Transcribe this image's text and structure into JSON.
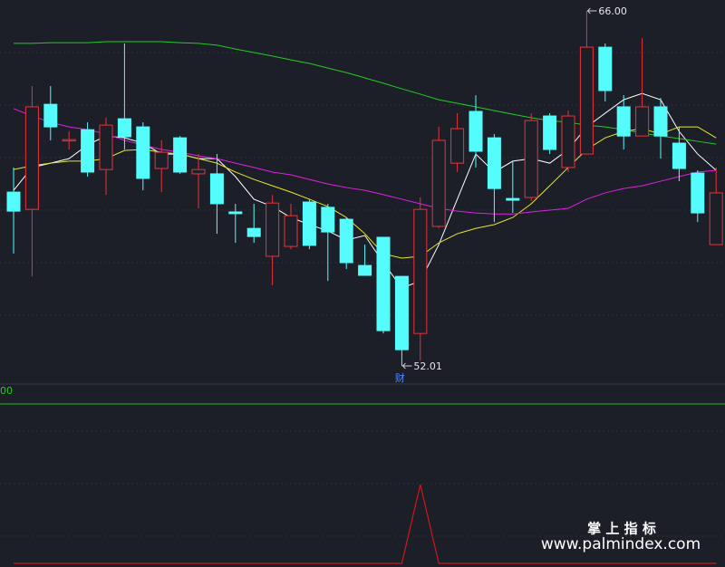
{
  "chart_data": [
    {
      "type": "candlestick",
      "ylim": [
        51.44,
        66.43
      ],
      "up_color": "#e8333a",
      "down_color": "#54fcfc",
      "open": [
        58.86,
        58.18,
        62.32,
        60.9,
        61.32,
        59.75,
        61.75,
        61.43,
        59.79,
        61.0,
        59.58,
        59.58,
        58.08,
        57.43,
        56.33,
        56.72,
        58.47,
        58.26,
        57.79,
        55.97,
        57.08,
        55.54,
        53.29,
        57.51,
        60.0,
        62.04,
        61.0,
        58.61,
        58.65,
        61.86,
        59.83,
        60.36,
        64.57,
        62.22,
        61.07,
        62.22,
        60.79,
        59.61,
        56.79
      ],
      "high": [
        59.83,
        63.04,
        63.04,
        61.25,
        61.61,
        61.79,
        64.72,
        61.61,
        60.9,
        61.07,
        60.36,
        60.36,
        58.4,
        58.4,
        58.75,
        58.4,
        58.58,
        58.4,
        57.86,
        56.79,
        57.08,
        55.54,
        58.65,
        61.43,
        61.97,
        62.68,
        61.15,
        60.08,
        61.97,
        61.97,
        62.07,
        66.0,
        64.72,
        62.68,
        64.93,
        62.57,
        61.43,
        59.72,
        59.83
      ],
      "low": [
        56.44,
        55.54,
        60.9,
        60.54,
        59.47,
        58.75,
        60.54,
        58.93,
        58.86,
        59.58,
        58.22,
        57.22,
        56.86,
        56.86,
        55.19,
        56.61,
        56.61,
        55.36,
        55.83,
        55.58,
        53.29,
        52.01,
        52.22,
        57.43,
        59.65,
        59.83,
        57.68,
        58.04,
        58.51,
        60.36,
        59.65,
        60.36,
        62.43,
        60.54,
        61.07,
        60.18,
        59.29,
        57.68,
        56.79
      ],
      "close": [
        58.11,
        62.22,
        61.43,
        60.93,
        59.65,
        61.5,
        61.04,
        59.4,
        60.43,
        59.65,
        59.75,
        58.4,
        58.01,
        57.11,
        58.43,
        57.93,
        56.76,
        57.29,
        56.08,
        55.58,
        53.4,
        52.65,
        58.18,
        60.9,
        61.36,
        60.47,
        59.0,
        58.54,
        61.68,
        60.54,
        61.86,
        64.57,
        62.86,
        61.07,
        62.22,
        61.07,
        59.79,
        58.04,
        58.83
      ],
      "series": [
        {
          "color": "#ffffff",
          "values": [
            58.93,
            59.83,
            60.0,
            60.18,
            60.72,
            61.07,
            61.0,
            60.79,
            60.36,
            60.36,
            60.18,
            60.18,
            59.47,
            58.58,
            58.29,
            57.86,
            57.58,
            57.33,
            56.97,
            57.15,
            56.08,
            55.08,
            55.36,
            56.79,
            58.58,
            60.36,
            59.65,
            60.08,
            60.18,
            60.0,
            60.54,
            61.43,
            61.97,
            62.5,
            62.75,
            62.5,
            61.25,
            60.36,
            59.72
          ]
        },
        {
          "color": "#e6e62e",
          "values": [
            59.75,
            59.9,
            60.0,
            60.08,
            60.08,
            60.18,
            60.5,
            60.54,
            60.43,
            60.36,
            60.18,
            60.0,
            59.65,
            59.36,
            59.11,
            58.86,
            58.58,
            58.29,
            57.86,
            57.22,
            56.43,
            56.26,
            56.33,
            56.86,
            57.22,
            57.43,
            57.58,
            57.86,
            58.4,
            59.11,
            59.83,
            60.54,
            61.0,
            61.25,
            61.36,
            61.15,
            61.43,
            61.43,
            61.0
          ]
        },
        {
          "color": "#e020e0",
          "values": [
            62.15,
            61.86,
            61.61,
            61.43,
            61.32,
            61.15,
            60.9,
            60.72,
            60.54,
            60.43,
            60.29,
            60.18,
            60.0,
            59.83,
            59.65,
            59.54,
            59.36,
            59.18,
            59.04,
            58.93,
            58.76,
            58.58,
            58.4,
            58.22,
            58.11,
            58.04,
            58.0,
            58.0,
            58.08,
            58.15,
            58.22,
            58.58,
            58.83,
            59.0,
            59.11,
            59.29,
            59.47,
            59.65,
            59.72
          ]
        },
        {
          "color": "#22cc22",
          "values": [
            64.72,
            64.72,
            64.75,
            64.75,
            64.75,
            64.79,
            64.79,
            64.79,
            64.79,
            64.75,
            64.72,
            64.65,
            64.5,
            64.36,
            64.22,
            64.07,
            63.93,
            63.75,
            63.57,
            63.36,
            63.15,
            62.93,
            62.72,
            62.5,
            62.36,
            62.22,
            62.07,
            61.93,
            61.79,
            61.68,
            61.61,
            61.5,
            61.43,
            61.32,
            61.18,
            61.07,
            60.97,
            60.86,
            60.75
          ]
        }
      ],
      "max_label": "66.00",
      "min_label": "52.01",
      "event_label": "财"
    },
    {
      "type": "line",
      "ylim": [
        0,
        1
      ],
      "color": "#d01818",
      "label": "00",
      "values": [
        0,
        0,
        0,
        0,
        0,
        0,
        0,
        0,
        0,
        0,
        0,
        0,
        0,
        0,
        0,
        0,
        0,
        0,
        0,
        0,
        0,
        0,
        1,
        0,
        0,
        0,
        0,
        0,
        0,
        0,
        0,
        0,
        0,
        0,
        0,
        0,
        0,
        0,
        0
      ]
    }
  ],
  "watermark": {
    "title": "掌 上 指 标",
    "url": "www.palmindex.com"
  }
}
